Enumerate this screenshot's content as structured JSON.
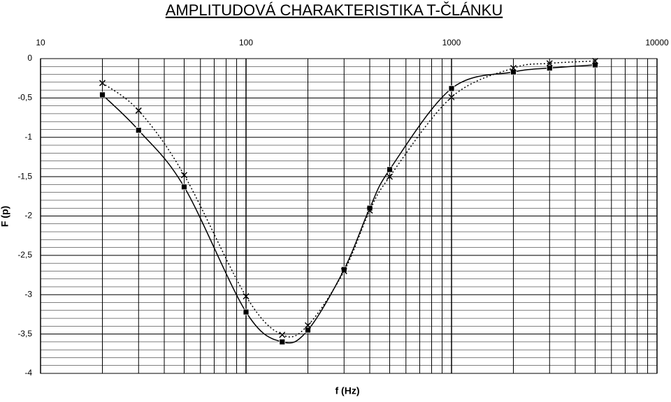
{
  "chart_data": {
    "type": "line",
    "title": "AMPLITUDOVÁ CHARAKTERISTIKA T-ČLÁNKU",
    "x_label": "f (Hz)",
    "y_label": "F (p)",
    "x": [
      20,
      30,
      50,
      100,
      150,
      200,
      300,
      400,
      500,
      1000,
      2000,
      3000,
      5000
    ],
    "series": [
      {
        "color": "#000000",
        "line_style": "solid",
        "marker": "square",
        "values": [
          -0.46,
          -0.91,
          -1.63,
          -3.22,
          -3.6,
          -3.45,
          -2.68,
          -1.9,
          -1.41,
          -0.38,
          -0.17,
          -0.12,
          -0.08
        ]
      },
      {
        "color": "#000000",
        "line_style": "dotted",
        "marker": "cross",
        "values": [
          -0.31,
          -0.66,
          -1.48,
          -3.02,
          -3.51,
          -3.39,
          -2.7,
          -1.93,
          -1.5,
          -0.49,
          -0.12,
          -0.06,
          -0.03
        ]
      }
    ],
    "xlim": [
      10,
      10000
    ],
    "x_log": true,
    "xticks": [
      10,
      100,
      1000,
      10000
    ],
    "ylim": [
      -4,
      0
    ],
    "yticks": [
      0,
      {
        "value": -0.5,
        "label": "-0,5"
      },
      -1,
      {
        "value": -1.5,
        "label": "-1,5"
      },
      -2,
      {
        "value": -2.5,
        "label": "-2,5"
      },
      -3,
      {
        "value": -3.5,
        "label": "-3,5"
      },
      -4
    ],
    "grid": true
  }
}
